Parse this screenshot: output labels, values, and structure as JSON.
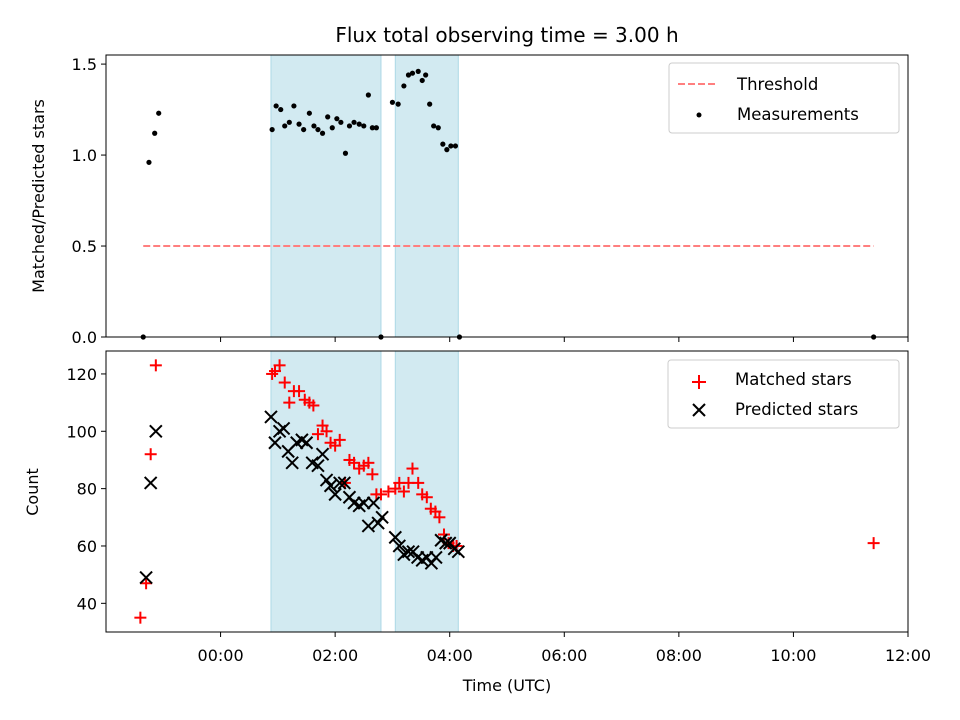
{
  "title": "Flux total observing time = 3.00 h",
  "colors": {
    "threshold": "#ff7f7f",
    "measurement": "#000000",
    "matched": "#ff0000",
    "predicted": "#000000",
    "shade": "#add8e6"
  },
  "chart_data": [
    {
      "type": "scatter",
      "ylabel": "Matched/Predicted stars",
      "xlabel": "",
      "ylim": [
        0,
        1.55
      ],
      "yticks": [
        "0.0",
        "0.5",
        "1.0",
        "1.5"
      ],
      "ytick_values": [
        0,
        0.5,
        1.0,
        1.5
      ],
      "xlim_hours": [
        -2.0,
        12.0
      ],
      "shaded_intervals_hours": [
        [
          0.88,
          2.8
        ],
        [
          3.05,
          4.15
        ]
      ],
      "legend": {
        "position": "top-right",
        "entries": [
          "Threshold",
          "Measurements"
        ]
      },
      "series": [
        {
          "name": "Threshold",
          "style": "dashed-line",
          "x_hours": [
            -1.35,
            11.4
          ],
          "y": [
            0.5,
            0.5
          ]
        },
        {
          "name": "Measurements",
          "style": "dots",
          "x_hours": [
            -1.35,
            -1.25,
            -1.15,
            -1.08,
            0.9,
            0.97,
            1.05,
            1.12,
            1.2,
            1.28,
            1.37,
            1.45,
            1.55,
            1.63,
            1.7,
            1.78,
            1.87,
            1.95,
            2.03,
            2.1,
            2.18,
            2.25,
            2.33,
            2.42,
            2.5,
            2.58,
            2.65,
            2.72,
            2.8,
            3.0,
            3.1,
            3.2,
            3.28,
            3.35,
            3.45,
            3.52,
            3.58,
            3.65,
            3.72,
            3.8,
            3.88,
            3.95,
            4.02,
            4.1,
            4.17,
            11.4
          ],
          "y": [
            0.0,
            0.96,
            1.12,
            1.23,
            1.14,
            1.27,
            1.25,
            1.16,
            1.18,
            1.27,
            1.17,
            1.14,
            1.23,
            1.16,
            1.14,
            1.12,
            1.21,
            1.15,
            1.2,
            1.18,
            1.01,
            1.16,
            1.18,
            1.17,
            1.16,
            1.33,
            1.15,
            1.15,
            0.0,
            1.29,
            1.28,
            1.38,
            1.44,
            1.45,
            1.46,
            1.41,
            1.44,
            1.28,
            1.16,
            1.15,
            1.06,
            1.03,
            1.05,
            1.05,
            0.0,
            0.0
          ]
        }
      ]
    },
    {
      "type": "scatter",
      "ylabel": "Count",
      "xlabel": "Time (UTC)",
      "ylim": [
        30,
        128
      ],
      "yticks": [
        "40",
        "60",
        "80",
        "100",
        "120"
      ],
      "ytick_values": [
        40,
        60,
        80,
        100,
        120
      ],
      "xlim_hours": [
        -2.0,
        12.0
      ],
      "xticks": [
        "00:00",
        "02:00",
        "04:00",
        "06:00",
        "08:00",
        "10:00",
        "12:00"
      ],
      "xtick_values": [
        0,
        2,
        4,
        6,
        8,
        10,
        12
      ],
      "shaded_intervals_hours": [
        [
          0.88,
          2.8
        ],
        [
          3.05,
          4.15
        ]
      ],
      "legend": {
        "position": "top-right",
        "entries": [
          "Matched stars",
          "Predicted stars"
        ]
      },
      "series": [
        {
          "name": "Matched stars",
          "marker": "plus",
          "x_hours": [
            -1.4,
            -1.3,
            -1.22,
            -1.13,
            0.9,
            0.95,
            1.03,
            1.12,
            1.2,
            1.28,
            1.37,
            1.47,
            1.55,
            1.62,
            1.7,
            1.78,
            1.85,
            1.92,
            2.0,
            2.08,
            2.17,
            2.25,
            2.33,
            2.42,
            2.5,
            2.58,
            2.65,
            2.72,
            2.8,
            2.93,
            3.05,
            3.12,
            3.2,
            3.28,
            3.35,
            3.45,
            3.52,
            3.6,
            3.67,
            3.75,
            3.82,
            3.9,
            3.98,
            4.06,
            4.12,
            11.4
          ],
          "y": [
            35,
            47,
            92,
            123,
            120,
            121,
            123,
            117,
            110,
            114,
            114,
            111,
            110,
            109,
            99,
            102,
            100,
            96,
            95,
            97,
            82,
            90,
            89,
            87,
            88,
            89,
            85,
            78,
            78,
            79,
            80,
            82,
            79,
            82,
            87,
            82,
            78,
            77,
            73,
            72,
            70,
            64,
            61,
            60,
            60,
            61
          ]
        },
        {
          "name": "Predicted stars",
          "marker": "x",
          "x_hours": [
            -1.3,
            -1.22,
            -1.13,
            0.88,
            0.95,
            1.03,
            1.1,
            1.18,
            1.25,
            1.33,
            1.42,
            1.5,
            1.6,
            1.7,
            1.78,
            1.85,
            1.92,
            2.0,
            2.08,
            2.16,
            2.25,
            2.33,
            2.42,
            2.5,
            2.58,
            2.67,
            2.75,
            2.82,
            3.05,
            3.12,
            3.2,
            3.28,
            3.36,
            3.44,
            3.52,
            3.6,
            3.68,
            3.76,
            3.85,
            3.93,
            4.0,
            4.08,
            4.15
          ],
          "y": [
            49,
            82,
            100,
            105,
            96,
            100,
            101,
            93,
            89,
            96,
            97,
            96,
            89,
            88,
            92,
            83,
            81,
            78,
            82,
            82,
            77,
            75,
            74,
            75,
            67,
            75,
            68,
            70,
            63,
            60,
            57,
            58,
            58,
            56,
            55,
            56,
            54,
            56,
            62,
            61,
            61,
            59,
            58
          ]
        }
      ]
    }
  ]
}
